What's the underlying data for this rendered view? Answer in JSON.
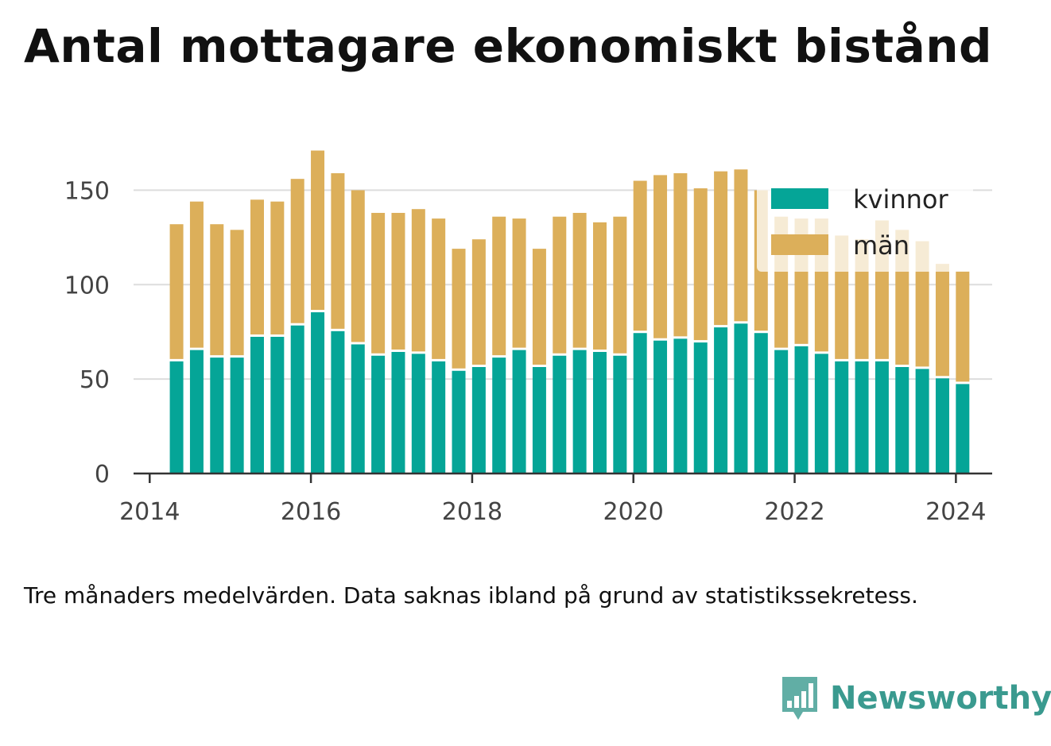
{
  "title": "Antal mottagare ekonomiskt bistånd",
  "caption": "Tre månaders medelvärden. Data saknas ibland på grund av statistikssekretess.",
  "brand": {
    "name": "Newsworthy",
    "icon": "newsworthy-logo-icon",
    "color": "#3a9a8f"
  },
  "chart_data": {
    "type": "bar",
    "stacked": true,
    "x": [
      "2014-05",
      "2014-08",
      "2014-11",
      "2015-02",
      "2015-05",
      "2015-08",
      "2015-11",
      "2016-02",
      "2016-05",
      "2016-08",
      "2016-11",
      "2017-02",
      "2017-05",
      "2017-08",
      "2017-11",
      "2018-02",
      "2018-05",
      "2018-08",
      "2018-11",
      "2019-02",
      "2019-05",
      "2019-08",
      "2019-11",
      "2020-02",
      "2020-05",
      "2020-08",
      "2020-11",
      "2021-02",
      "2021-05",
      "2021-08",
      "2021-11",
      "2022-02",
      "2022-05",
      "2022-08",
      "2022-11",
      "2023-02",
      "2023-05",
      "2023-08",
      "2023-11",
      "2024-02"
    ],
    "series": [
      {
        "name": "kvinnor",
        "color": "#05a597",
        "values": [
          60,
          66,
          62,
          62,
          73,
          73,
          79,
          86,
          76,
          69,
          63,
          65,
          64,
          60,
          55,
          57,
          62,
          66,
          57,
          63,
          66,
          65,
          63,
          75,
          71,
          72,
          70,
          78,
          80,
          75,
          66,
          68,
          64,
          60,
          60,
          60,
          57,
          56,
          51,
          48
        ]
      },
      {
        "name": "män",
        "color": "#dcaf5a",
        "values": [
          72,
          78,
          70,
          67,
          72,
          71,
          77,
          85,
          83,
          81,
          75,
          73,
          76,
          75,
          64,
          67,
          74,
          69,
          62,
          73,
          72,
          68,
          73,
          80,
          87,
          87,
          81,
          82,
          81,
          75,
          70,
          67,
          71,
          66,
          64,
          74,
          72,
          67,
          60,
          59
        ]
      }
    ],
    "xlim": [
      2013.8,
      2024.45
    ],
    "ylim": [
      0,
      175
    ],
    "xticks": [
      "2014",
      "2016",
      "2018",
      "2020",
      "2022",
      "2024"
    ],
    "yticks": [
      "0",
      "50",
      "100",
      "150"
    ],
    "grid": true,
    "legend": "top-right"
  }
}
